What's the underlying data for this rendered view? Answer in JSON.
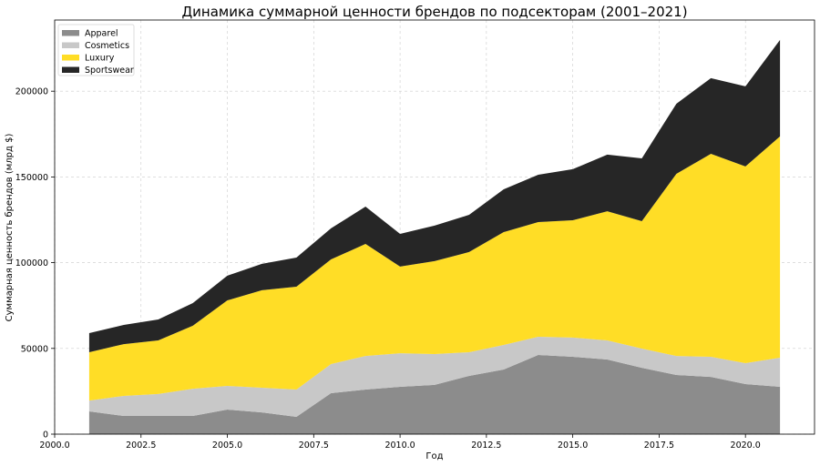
{
  "chart_data": {
    "type": "area",
    "stacked": true,
    "title": "Динамика суммарной ценности брендов по подсекторам (2001–2021)",
    "xlabel": "Год",
    "ylabel": "Суммарная ценность брендов (млрд $)",
    "xlim": [
      2000,
      2022
    ],
    "ylim": [
      0,
      241500
    ],
    "grid": true,
    "legend_position": "top-left",
    "x_ticks": [
      2000.0,
      2002.5,
      2005.0,
      2007.5,
      2010.0,
      2012.5,
      2015.0,
      2017.5,
      2020.0
    ],
    "x_tick_labels": [
      "2000.0",
      "2002.5",
      "2005.0",
      "2007.5",
      "2010.0",
      "2012.5",
      "2015.0",
      "2017.5",
      "2020.0"
    ],
    "y_ticks": [
      0,
      50000,
      100000,
      150000,
      200000
    ],
    "y_tick_labels": [
      "0",
      "50000",
      "100000",
      "150000",
      "200000"
    ],
    "x": [
      2001,
      2002,
      2003,
      2004,
      2005,
      2006,
      2007,
      2008,
      2009,
      2010,
      2011,
      2012,
      2013,
      2014,
      2015,
      2016,
      2017,
      2018,
      2019,
      2020,
      2021
    ],
    "series": [
      {
        "name": "Apparel",
        "color": "#8c8c8c",
        "values": [
          13300,
          10600,
          10600,
          10600,
          14300,
          12700,
          10100,
          23900,
          26000,
          27600,
          28700,
          34000,
          37700,
          46200,
          45100,
          43500,
          38700,
          34500,
          33400,
          29200,
          27600
        ]
      },
      {
        "name": "Cosmetics",
        "color": "#c8c8c8",
        "values": [
          6300,
          11700,
          12800,
          15900,
          13800,
          14400,
          15900,
          17000,
          19600,
          19600,
          18000,
          13800,
          14300,
          10600,
          11200,
          11200,
          11200,
          11100,
          11700,
          12200,
          17000
        ]
      },
      {
        "name": "Luxury",
        "color": "#ffdd26",
        "values": [
          28200,
          30200,
          31300,
          36700,
          49900,
          56800,
          60000,
          61000,
          65300,
          50500,
          54200,
          58400,
          65800,
          66900,
          68400,
          75300,
          74300,
          106200,
          118400,
          114700,
          129000
        ]
      },
      {
        "name": "Sportswear",
        "color": "#262626",
        "values": [
          11100,
          11200,
          12200,
          13200,
          14400,
          15400,
          17000,
          18100,
          21800,
          19100,
          20700,
          21700,
          25000,
          27600,
          29800,
          33000,
          36600,
          40900,
          44100,
          46700,
          56300
        ]
      }
    ]
  }
}
